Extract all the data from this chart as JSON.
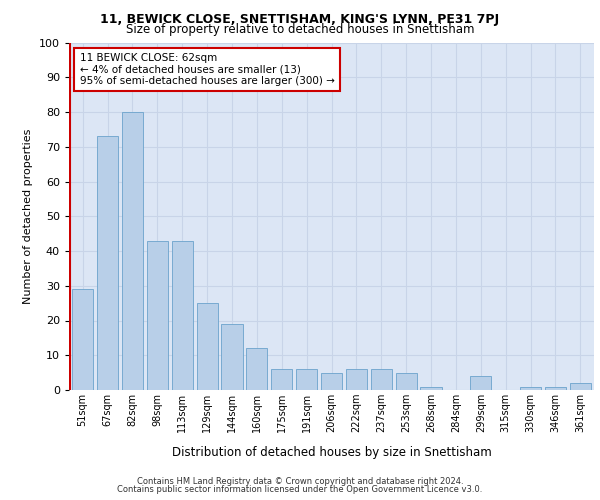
{
  "title": "11, BEWICK CLOSE, SNETTISHAM, KING'S LYNN, PE31 7PJ",
  "subtitle": "Size of property relative to detached houses in Snettisham",
  "xlabel": "Distribution of detached houses by size in Snettisham",
  "ylabel": "Number of detached properties",
  "categories": [
    "51sqm",
    "67sqm",
    "82sqm",
    "98sqm",
    "113sqm",
    "129sqm",
    "144sqm",
    "160sqm",
    "175sqm",
    "191sqm",
    "206sqm",
    "222sqm",
    "237sqm",
    "253sqm",
    "268sqm",
    "284sqm",
    "299sqm",
    "315sqm",
    "330sqm",
    "346sqm",
    "361sqm"
  ],
  "values": [
    29,
    73,
    80,
    43,
    43,
    25,
    19,
    12,
    6,
    6,
    5,
    6,
    6,
    5,
    1,
    0,
    4,
    0,
    1,
    1,
    2
  ],
  "bar_color": "#b8cfe8",
  "bar_edge_color": "#6ba3cc",
  "highlight_color": "#cc0000",
  "annotation_text": "11 BEWICK CLOSE: 62sqm\n← 4% of detached houses are smaller (13)\n95% of semi-detached houses are larger (300) →",
  "annotation_box_color": "#ffffff",
  "annotation_box_edge_color": "#cc0000",
  "ylim": [
    0,
    100
  ],
  "yticks": [
    0,
    10,
    20,
    30,
    40,
    50,
    60,
    70,
    80,
    90,
    100
  ],
  "grid_color": "#c8d4e8",
  "background_color": "#dce6f5",
  "footer_line1": "Contains HM Land Registry data © Crown copyright and database right 2024.",
  "footer_line2": "Contains public sector information licensed under the Open Government Licence v3.0.",
  "red_line_x": -0.5
}
